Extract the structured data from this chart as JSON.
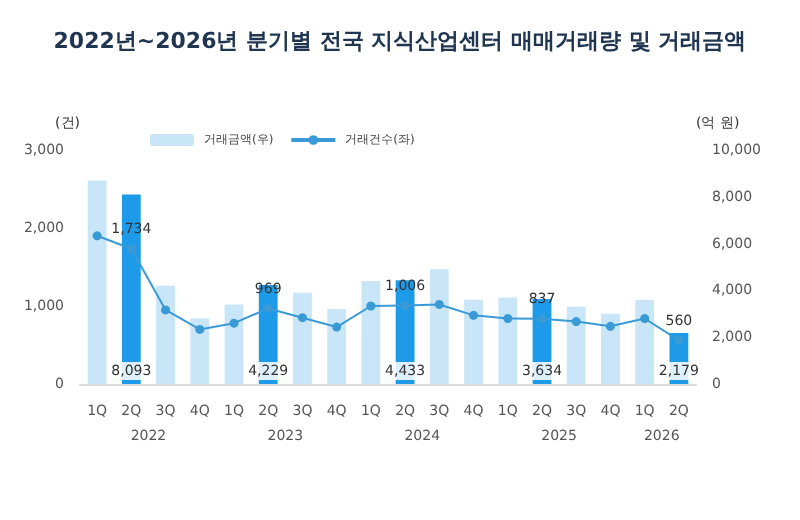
{
  "chart_data": {
    "type": "bar",
    "title": "2022년~2026년 분기별 전국 지식산업센터 매매거래량 및 거래금액",
    "ylabel": "(건)",
    "y2label": "(억 원)",
    "categories": [
      "1Q",
      "2Q",
      "3Q",
      "4Q",
      "1Q",
      "2Q",
      "3Q",
      "4Q",
      "1Q",
      "2Q",
      "3Q",
      "4Q",
      "1Q",
      "2Q",
      "3Q",
      "4Q",
      "1Q",
      "2Q"
    ],
    "annotations": [
      "2022",
      "2023",
      "2024",
      "2025",
      "2026"
    ],
    "series": [
      {
        "name": "거래금액(우)",
        "axis": "y2",
        "color": "#c8e6f8",
        "colors": [
          "#c8e6f8",
          "#1e9be8",
          "#c8e6f8",
          "#c8e6f8",
          "#c8e6f8",
          "#1e9be8",
          "#c8e6f8",
          "#c8e6f8",
          "#c8e6f8",
          "#1e9be8",
          "#c8e6f8",
          "#c8e6f8",
          "#c8e6f8",
          "#1e9be8",
          "#c8e6f8",
          "#c8e6f8",
          "#c8e6f8",
          "#1e9be8"
        ],
        "values": [
          8700,
          8093,
          4200,
          2800,
          3400,
          4229,
          3900,
          3200,
          4400,
          4433,
          4900,
          3600,
          3700,
          3634,
          3300,
          3000,
          3600,
          2179
        ],
        "value_labels": [
          null,
          "8,093",
          null,
          null,
          null,
          "4,229",
          null,
          null,
          null,
          "4,433",
          null,
          null,
          null,
          "3,634",
          null,
          null,
          null,
          "2,179"
        ]
      },
      {
        "name": "거래건수(좌)",
        "type": "line",
        "axis": "y",
        "color": "#3a9ad6",
        "values": [
          1900,
          1734,
          950,
          700,
          780,
          969,
          850,
          730,
          1000,
          1006,
          1020,
          880,
          840,
          837,
          800,
          740,
          840,
          560
        ],
        "value_labels": [
          null,
          "1,734",
          null,
          null,
          null,
          "969",
          null,
          null,
          null,
          "1,006",
          null,
          null,
          null,
          "837",
          null,
          null,
          null,
          "560"
        ]
      }
    ],
    "ylim": [
      0,
      3000
    ],
    "yticks": [
      0,
      {
        "value": 1000,
        "label": "1,000"
      },
      {
        "value": 2000,
        "label": "2,000"
      },
      {
        "value": 3000,
        "label": "3,000"
      }
    ],
    "y2lim": [
      0,
      10000
    ],
    "y2ticks": [
      0,
      {
        "value": 2000,
        "label": "2,000"
      },
      {
        "value": 4000,
        "label": "4,000"
      },
      {
        "value": 6000,
        "label": "6,000"
      },
      {
        "value": 8000,
        "label": "8,000"
      },
      {
        "value": 10000,
        "label": "10,000"
      }
    ],
    "grid": false,
    "legend": "top",
    "marker": "circle",
    "line_style": "solid"
  }
}
